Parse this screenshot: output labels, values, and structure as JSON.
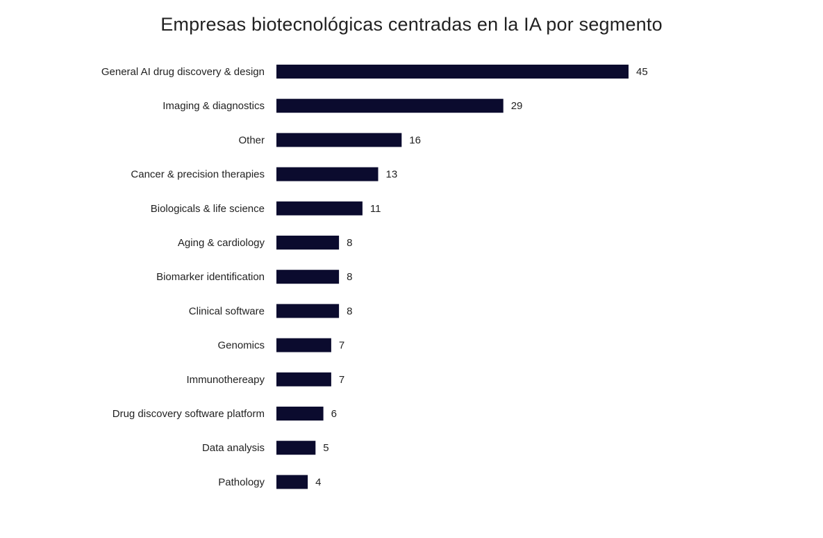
{
  "chart_data": {
    "type": "bar",
    "orientation": "horizontal",
    "title": "Empresas biotecnológicas centradas en la IA por segmento",
    "categories": [
      "General AI drug discovery & design",
      "Imaging & diagnostics",
      "Other",
      "Cancer & precision therapies",
      "Biologicals & life science",
      "Aging & cardiology",
      "Biomarker identification",
      "Clinical software",
      "Genomics",
      "Immunothereapy",
      "Drug discovery software platform",
      "Data analysis",
      "Pathology"
    ],
    "values": [
      45,
      29,
      16,
      13,
      11,
      8,
      8,
      8,
      7,
      7,
      6,
      5,
      4
    ],
    "xlim": [
      0,
      45
    ],
    "grid": false,
    "legend": "none",
    "data_labels": true,
    "bar_color": "#0b0b2e"
  }
}
